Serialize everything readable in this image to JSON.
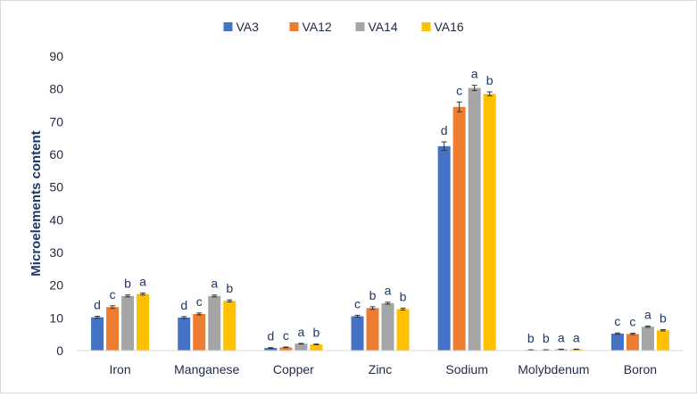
{
  "chart_data": {
    "type": "bar",
    "title": "",
    "xlabel": "",
    "ylabel": "Microelements content",
    "ylim": [
      0,
      90
    ],
    "yticks": [
      0,
      10,
      20,
      30,
      40,
      50,
      60,
      70,
      80,
      90
    ],
    "grid": false,
    "legend_position": "top-center",
    "categories": [
      "Iron",
      "Manganese",
      "Copper",
      "Zinc",
      "Sodium",
      "Molybdenum",
      "Boron"
    ],
    "series": [
      {
        "name": "VA3",
        "color": "#4472C4",
        "values": [
          10.2,
          10.1,
          0.8,
          10.5,
          62.5,
          0.2,
          5.2
        ],
        "errors": [
          0.3,
          0.3,
          0.1,
          0.3,
          1.3,
          0.05,
          0.2
        ],
        "labels": [
          "d",
          "d",
          "d",
          "c",
          "d",
          "b",
          "c"
        ]
      },
      {
        "name": "VA12",
        "color": "#ED7D31",
        "values": [
          13.3,
          11.2,
          1.0,
          13.0,
          74.5,
          0.2,
          5.1
        ],
        "errors": [
          0.4,
          0.3,
          0.1,
          0.4,
          1.5,
          0.05,
          0.2
        ],
        "labels": [
          "c",
          "c",
          "c",
          "b",
          "c",
          "b",
          "c"
        ]
      },
      {
        "name": "VA14",
        "color": "#A5A5A5",
        "values": [
          16.7,
          16.7,
          2.1,
          14.5,
          80.3,
          0.4,
          7.3
        ],
        "errors": [
          0.3,
          0.3,
          0.1,
          0.3,
          0.8,
          0.05,
          0.2
        ],
        "labels": [
          "b",
          "a",
          "a",
          "a",
          "a",
          "a",
          "a"
        ]
      },
      {
        "name": "VA16",
        "color": "#FFC000",
        "values": [
          17.3,
          15.2,
          1.9,
          12.7,
          78.5,
          0.4,
          6.2
        ],
        "errors": [
          0.3,
          0.3,
          0.1,
          0.3,
          0.6,
          0.05,
          0.2
        ],
        "labels": [
          "a",
          "b",
          "b",
          "b",
          "b",
          "a",
          "b"
        ]
      }
    ]
  }
}
